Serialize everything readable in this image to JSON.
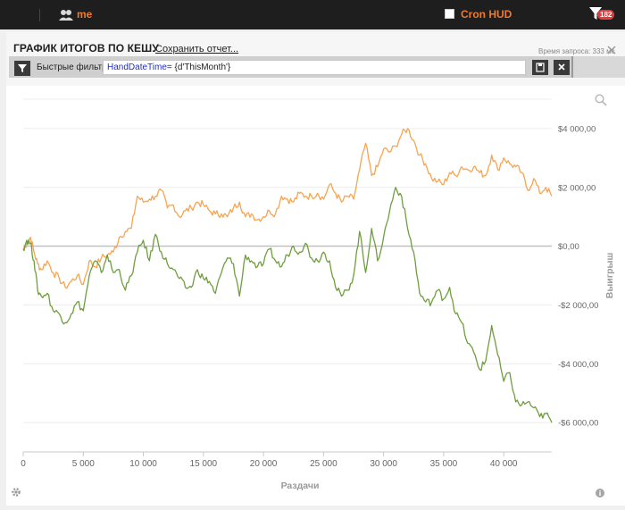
{
  "topbar": {
    "user_name": "me",
    "hud_label": "Cron HUD",
    "notification_count": "182"
  },
  "panel": {
    "title": "ГРАФИК ИТОГОВ ПО КЕШУ",
    "save_report_label": "Сохранить отчет...",
    "query_time": "Время запроса: 333 мс"
  },
  "filter": {
    "label": "Быстрые фильтры",
    "keyword": "HandDateTime",
    "value": "= {d'ThisMonth'}"
  },
  "chart_data": {
    "type": "line",
    "title": "",
    "xlabel": "Раздачи",
    "ylabel": "Выигрыш",
    "xlim": [
      0,
      44000
    ],
    "ylim": [
      -7000,
      5000
    ],
    "x_ticks": [
      0,
      5000,
      10000,
      15000,
      20000,
      25000,
      30000,
      35000,
      40000
    ],
    "x_tick_labels": [
      "0",
      "5 000",
      "10 000",
      "15 000",
      "20 000",
      "25 000",
      "30 000",
      "35 000",
      "40 000"
    ],
    "y_ticks": [
      4000,
      2000,
      0,
      -2000,
      -4000,
      -6000
    ],
    "y_tick_labels": [
      "$4 000,00",
      "$2 000,00",
      "$0,00",
      "-$2 000,00",
      "-$4 000,00",
      "-$6 000,00"
    ],
    "grid": true,
    "zero_line": true,
    "series": [
      {
        "color": "#f7a450",
        "x": [
          0,
          300,
          600,
          900,
          1200,
          1500,
          2000,
          2500,
          3000,
          3500,
          4000,
          4500,
          5000,
          5500,
          6000,
          6500,
          7000,
          7500,
          8000,
          8500,
          9000,
          9500,
          10000,
          10500,
          11000,
          11500,
          12000,
          12500,
          13000,
          13500,
          14000,
          14500,
          15000,
          15500,
          16000,
          16500,
          17000,
          17500,
          18000,
          18500,
          19000,
          19500,
          20000,
          20500,
          21000,
          21500,
          22000,
          22500,
          23000,
          23500,
          24000,
          24500,
          25000,
          25500,
          26000,
          26500,
          27000,
          27500,
          28000,
          28500,
          29000,
          29500,
          30000,
          30500,
          31000,
          31500,
          32000,
          32500,
          33000,
          33500,
          34000,
          34500,
          35000,
          35500,
          36000,
          36500,
          37000,
          37500,
          38000,
          38500,
          39000,
          39500,
          40000,
          40500,
          41000,
          41500,
          42000,
          42500,
          43000,
          43500,
          44000
        ],
        "y": [
          -100,
          100,
          300,
          -200,
          -600,
          -800,
          -500,
          -900,
          -1100,
          -1400,
          -1200,
          -1000,
          -1300,
          -500,
          -700,
          -400,
          -300,
          -200,
          300,
          500,
          600,
          1700,
          1500,
          1600,
          1700,
          1900,
          1300,
          1400,
          1000,
          1200,
          1300,
          1500,
          1400,
          1200,
          1100,
          1100,
          1000,
          1300,
          1500,
          1000,
          1100,
          900,
          1000,
          1200,
          1100,
          1700,
          1600,
          1500,
          1800,
          1700,
          1700,
          1800,
          1600,
          2100,
          1800,
          1500,
          1700,
          1600,
          2600,
          3500,
          2400,
          2700,
          3300,
          3200,
          3400,
          3800,
          4000,
          3600,
          3100,
          2800,
          2300,
          2200,
          2100,
          2500,
          2400,
          2700,
          2600,
          2700,
          2500,
          2400,
          3100,
          2600,
          3000,
          2800,
          2700,
          2500,
          1900,
          2300,
          1800,
          2000,
          1700
        ]
      },
      {
        "color": "#6f9e3f",
        "x": [
          0,
          300,
          600,
          900,
          1200,
          1500,
          2000,
          2500,
          3000,
          3500,
          4000,
          4500,
          5000,
          5500,
          6000,
          6500,
          7000,
          7500,
          8000,
          8500,
          9000,
          9500,
          10000,
          10500,
          11000,
          11500,
          12000,
          12500,
          13000,
          13500,
          14000,
          14500,
          15000,
          15500,
          16000,
          16500,
          17000,
          17500,
          18000,
          18500,
          19000,
          19500,
          20000,
          20500,
          21000,
          21500,
          22000,
          22500,
          23000,
          23500,
          24000,
          24500,
          25000,
          25500,
          26000,
          26500,
          27000,
          27500,
          28000,
          28500,
          29000,
          29500,
          30000,
          30500,
          31000,
          31500,
          32000,
          32500,
          33000,
          33500,
          34000,
          34500,
          35000,
          35500,
          36000,
          36500,
          37000,
          37500,
          38000,
          38500,
          39000,
          39500,
          40000,
          40500,
          41000,
          41500,
          42000,
          42500,
          43000,
          43500,
          44000
        ],
        "y": [
          -100,
          200,
          100,
          -500,
          -1500,
          -1700,
          -1600,
          -2200,
          -2300,
          -2600,
          -2300,
          -1900,
          -2200,
          -1000,
          -500,
          -900,
          -300,
          -900,
          -800,
          -1500,
          -1000,
          -200,
          200,
          -500,
          400,
          -200,
          -600,
          -800,
          -1100,
          -1400,
          -1400,
          -800,
          -1100,
          -1200,
          -1600,
          -900,
          -400,
          -600,
          -1700,
          -300,
          -500,
          -700,
          -600,
          -100,
          -500,
          -700,
          -300,
          0,
          -200,
          100,
          -400,
          -500,
          -200,
          -500,
          -1400,
          -1700,
          -1500,
          -1000,
          500,
          -900,
          600,
          -500,
          300,
          1200,
          2000,
          1700,
          600,
          -200,
          -1600,
          -1900,
          -1900,
          -1500,
          -1800,
          -1400,
          -2300,
          -2600,
          -3300,
          -3600,
          -4200,
          -3900,
          -2700,
          -3700,
          -4600,
          -4300,
          -5300,
          -5400,
          -5300,
          -5500,
          -5800,
          -5700,
          -6000
        ]
      }
    ]
  }
}
